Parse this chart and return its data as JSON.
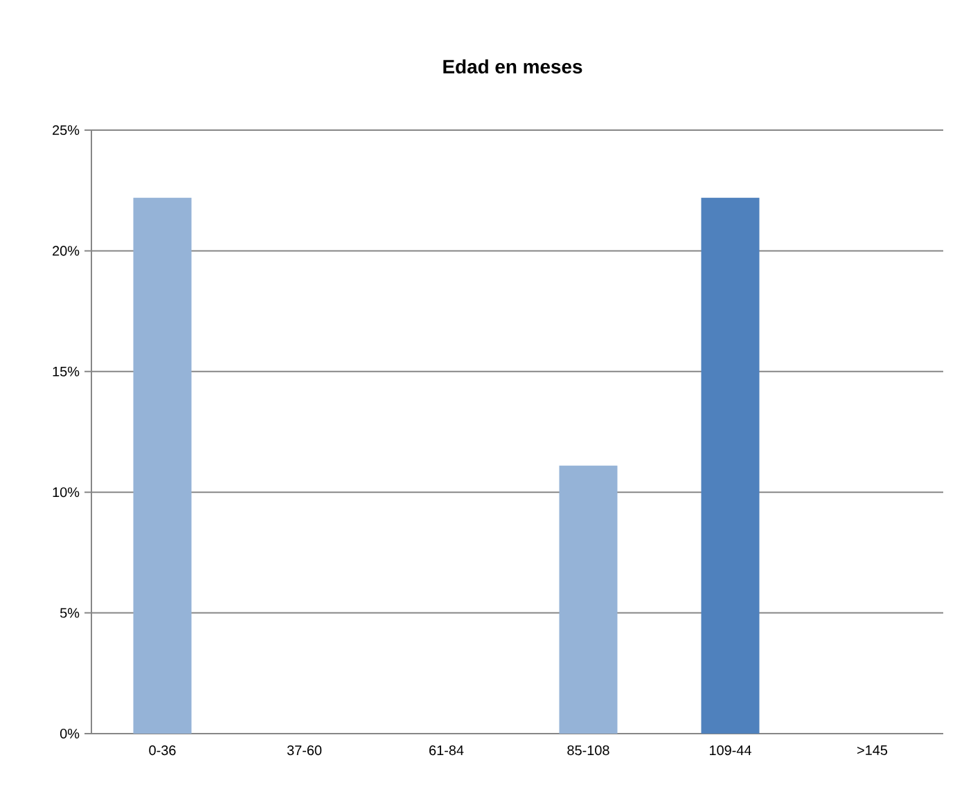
{
  "chart_data": {
    "type": "bar",
    "title": "Edad en meses",
    "categories": [
      "0-36",
      "37-60",
      "61-84",
      "85-108",
      "109-44",
      ">145"
    ],
    "values": [
      22.2,
      0,
      0,
      11.1,
      22.2,
      0
    ],
    "colors": [
      "#95b3d7",
      "#95b3d7",
      "#95b3d7",
      "#95b3d7",
      "#4f81bd",
      "#4f81bd"
    ],
    "ylim": [
      0,
      25
    ],
    "yticks": [
      {
        "value": 0,
        "label": "0%"
      },
      {
        "value": 5,
        "label": "5%"
      },
      {
        "value": 10,
        "label": "10%"
      },
      {
        "value": 15,
        "label": "15%"
      },
      {
        "value": 20,
        "label": "20%"
      },
      {
        "value": 25,
        "label": "25%"
      }
    ],
    "grid": "y"
  }
}
